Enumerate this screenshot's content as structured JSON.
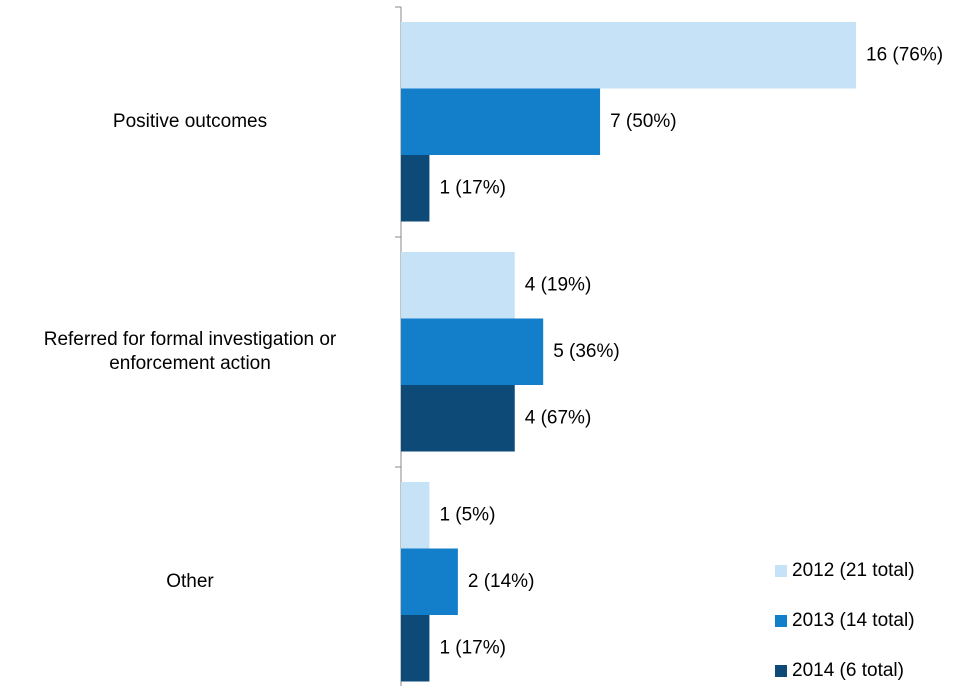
{
  "chart_data": {
    "type": "hbar",
    "categories": [
      "Positive outcomes",
      "Referred for formal investigation or enforcement action",
      "Other"
    ],
    "series": [
      {
        "name": "2012 (21 total)",
        "color": "#c6e2f7",
        "values": [
          16,
          4,
          1
        ],
        "value_labels": [
          "16 (76%)",
          "4 (19%)",
          "1 (5%)"
        ]
      },
      {
        "name": "2013 (14 total)",
        "color": "#137fcb",
        "values": [
          7,
          5,
          2
        ],
        "value_labels": [
          "7 (50%)",
          "5 (36%)",
          "2 (14%)"
        ]
      },
      {
        "name": "2014 (6 total)",
        "color": "#0d4a77",
        "values": [
          1,
          4,
          1
        ],
        "value_labels": [
          "1 (17%)",
          "4 (67%)",
          "1 (17%)"
        ]
      }
    ],
    "legend": "lower right"
  }
}
